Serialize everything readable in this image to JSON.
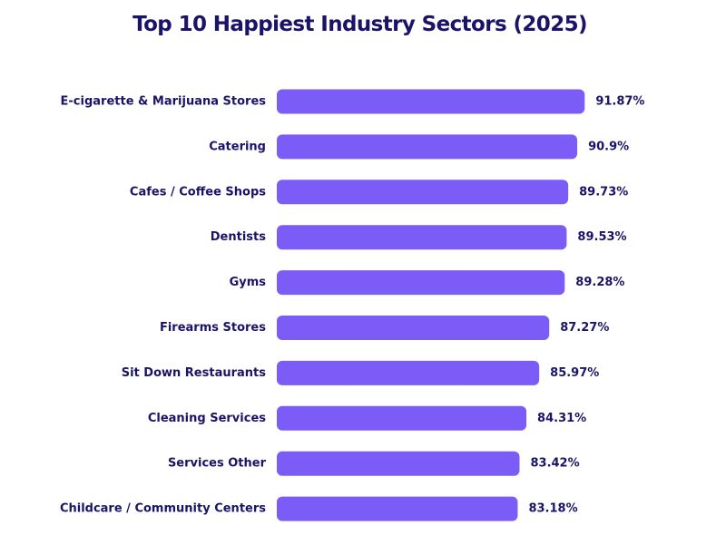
{
  "chart_data": {
    "type": "bar",
    "orientation": "horizontal",
    "title": "Top 10 Happiest Industry Sectors (2025)",
    "xlabel": "",
    "ylabel": "",
    "categories": [
      "E-cigarette & Marijuana Stores",
      "Catering",
      "Cafes / Coffee Shops",
      "Dentists",
      "Gyms",
      "Firearms Stores",
      "Sit Down Restaurants",
      "Cleaning Services",
      "Services Other",
      "Childcare / Community Centers"
    ],
    "values": [
      91.87,
      90.9,
      89.73,
      89.53,
      89.28,
      87.27,
      85.97,
      84.31,
      83.42,
      83.18
    ],
    "value_labels": [
      "91.87%",
      "90.9%",
      "89.73%",
      "89.53%",
      "89.28%",
      "87.27%",
      "85.97%",
      "84.31%",
      "83.42%",
      "83.18%"
    ],
    "grid": false,
    "axes_visible": false,
    "legend": "none",
    "colors": {
      "bar": "#7b5cf6",
      "text": "#1a1468",
      "background": "#ffffff"
    }
  }
}
